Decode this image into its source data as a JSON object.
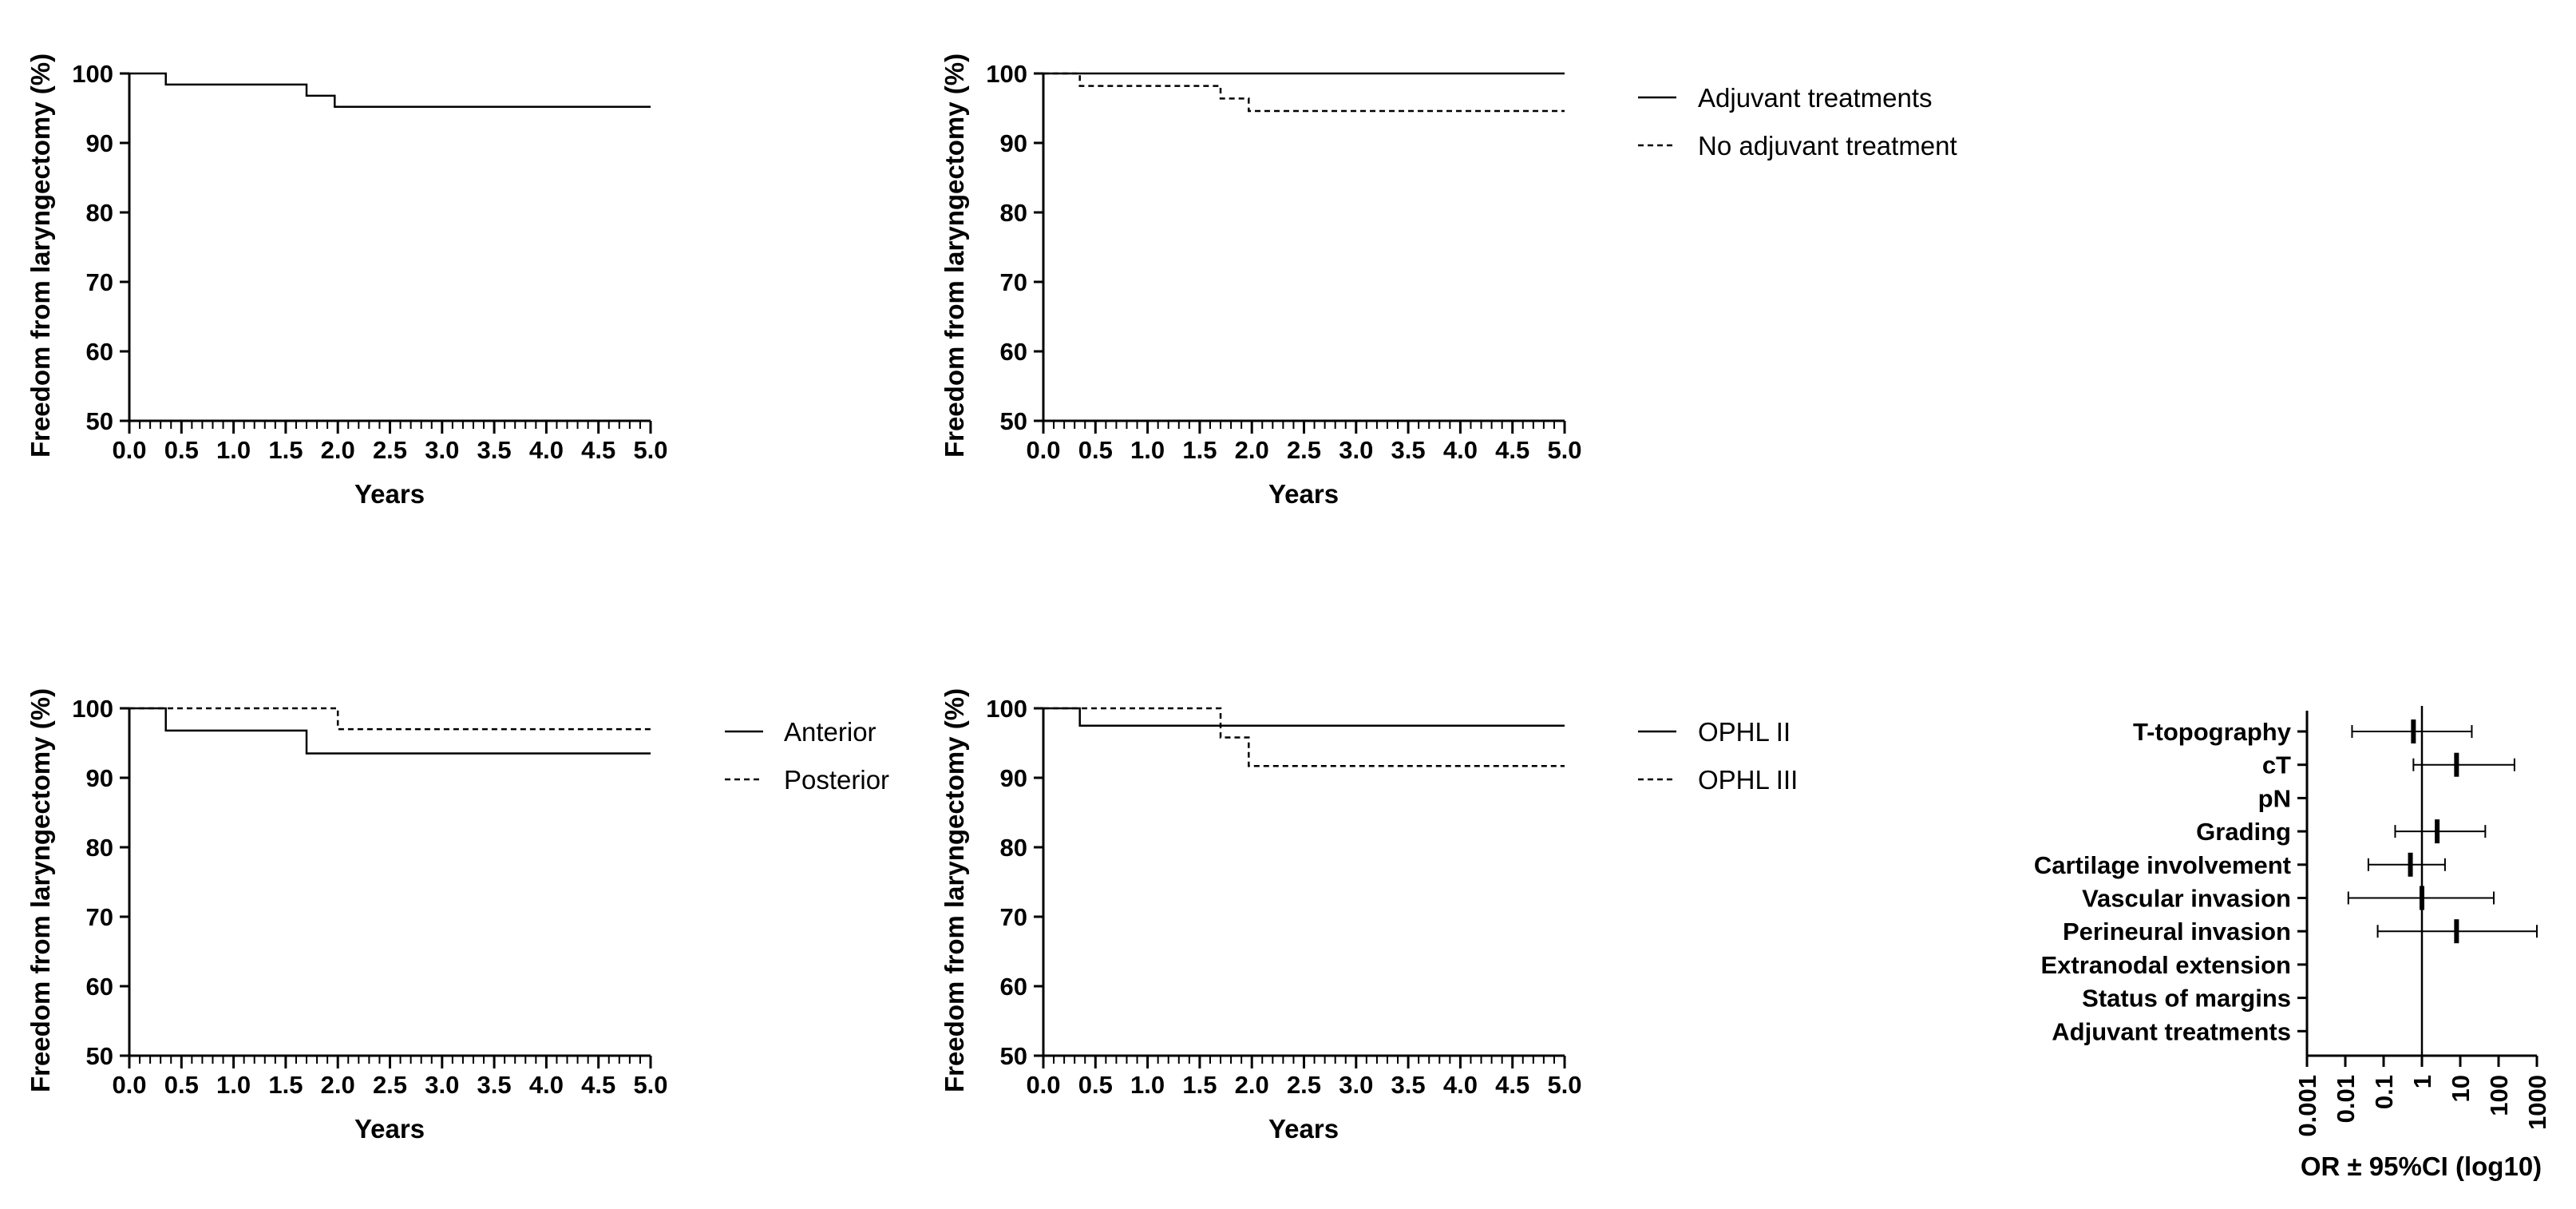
{
  "chart_data": [
    {
      "id": "km1",
      "type": "line",
      "step": true,
      "xlabel": "Years",
      "ylabel": "Freedom from laryngectomy (%)",
      "xlim": [
        0,
        5
      ],
      "ylim": [
        50,
        100
      ],
      "x_ticks": [
        0,
        0.5,
        1,
        1.5,
        2,
        2.5,
        3,
        3.5,
        4,
        4.5,
        5
      ],
      "x_tick_labels": [
        "0.0",
        "0.5",
        "1.0",
        "1.5",
        "2.0",
        "2.5",
        "3.0",
        "3.5",
        "4.0",
        "4.5",
        "5.0"
      ],
      "y_ticks": [
        50,
        60,
        70,
        80,
        90,
        100
      ],
      "y_tick_labels": [
        "50",
        "60",
        "70",
        "80",
        "90",
        "100"
      ],
      "grid": false,
      "series": [
        {
          "style": "solid",
          "x": [
            0,
            0.35,
            1.7,
            1.97,
            5
          ],
          "y": [
            100,
            98.4,
            96.8,
            95.2,
            95.2
          ]
        }
      ]
    },
    {
      "id": "km2",
      "type": "line",
      "step": true,
      "xlabel": "Years",
      "ylabel": "Freedom from laryngectomy (%)",
      "xlim": [
        0,
        5
      ],
      "ylim": [
        50,
        100
      ],
      "x_ticks": [
        0,
        0.5,
        1,
        1.5,
        2,
        2.5,
        3,
        3.5,
        4,
        4.5,
        5
      ],
      "x_tick_labels": [
        "0.0",
        "0.5",
        "1.0",
        "1.5",
        "2.0",
        "2.5",
        "3.0",
        "3.5",
        "4.0",
        "4.5",
        "5.0"
      ],
      "y_ticks": [
        50,
        60,
        70,
        80,
        90,
        100
      ],
      "y_tick_labels": [
        "50",
        "60",
        "70",
        "80",
        "90",
        "100"
      ],
      "grid": false,
      "legend_position": "right",
      "series": [
        {
          "name": "Adjuvant treatments",
          "style": "solid",
          "x": [
            0,
            5
          ],
          "y": [
            100,
            100
          ]
        },
        {
          "name": "No adjuvant treatment",
          "style": "dashed",
          "x": [
            0,
            0.35,
            1.7,
            1.97,
            5
          ],
          "y": [
            100,
            98.2,
            96.4,
            94.6,
            94.6
          ]
        }
      ]
    },
    {
      "id": "km3",
      "type": "line",
      "step": true,
      "xlabel": "Years",
      "ylabel": "Freedom from laryngectomy (%)",
      "xlim": [
        0,
        5
      ],
      "ylim": [
        50,
        100
      ],
      "x_ticks": [
        0,
        0.5,
        1,
        1.5,
        2,
        2.5,
        3,
        3.5,
        4,
        4.5,
        5
      ],
      "x_tick_labels": [
        "0.0",
        "0.5",
        "1.0",
        "1.5",
        "2.0",
        "2.5",
        "3.0",
        "3.5",
        "4.0",
        "4.5",
        "5.0"
      ],
      "y_ticks": [
        50,
        60,
        70,
        80,
        90,
        100
      ],
      "y_tick_labels": [
        "50",
        "60",
        "70",
        "80",
        "90",
        "100"
      ],
      "grid": false,
      "legend_position": "right",
      "series": [
        {
          "name": "Anterior",
          "style": "solid",
          "x": [
            0,
            0.35,
            1.7,
            5
          ],
          "y": [
            100,
            96.8,
            93.5,
            93.5
          ]
        },
        {
          "name": "Posterior",
          "style": "dashed",
          "x": [
            0,
            2.0,
            5
          ],
          "y": [
            100,
            97.0,
            97.0
          ]
        }
      ]
    },
    {
      "id": "km4",
      "type": "line",
      "step": true,
      "xlabel": "Years",
      "ylabel": "Freedom from laryngectomy (%)",
      "xlim": [
        0,
        5
      ],
      "ylim": [
        50,
        100
      ],
      "x_ticks": [
        0,
        0.5,
        1,
        1.5,
        2,
        2.5,
        3,
        3.5,
        4,
        4.5,
        5
      ],
      "x_tick_labels": [
        "0.0",
        "0.5",
        "1.0",
        "1.5",
        "2.0",
        "2.5",
        "3.0",
        "3.5",
        "4.0",
        "4.5",
        "5.0"
      ],
      "y_ticks": [
        50,
        60,
        70,
        80,
        90,
        100
      ],
      "y_tick_labels": [
        "50",
        "60",
        "70",
        "80",
        "90",
        "100"
      ],
      "grid": false,
      "legend_position": "right",
      "series": [
        {
          "name": "OPHL II",
          "style": "solid",
          "x": [
            0,
            0.35,
            5
          ],
          "y": [
            100,
            97.5,
            97.5
          ]
        },
        {
          "name": "OPHL III",
          "style": "dashed",
          "x": [
            0,
            1.7,
            1.97,
            5
          ],
          "y": [
            100,
            95.8,
            91.7,
            91.7
          ]
        }
      ]
    },
    {
      "id": "forest",
      "type": "scatter",
      "variant": "forest",
      "xlabel": "OR ± 95%CI (log10)",
      "x_scale": "log",
      "xlim": [
        0.001,
        1000
      ],
      "x_ticks": [
        0.001,
        0.01,
        0.1,
        1,
        10,
        100,
        1000
      ],
      "x_tick_labels": [
        "0.001",
        "0.01",
        "0.1",
        "1",
        "10",
        "100",
        "1000"
      ],
      "reference_line": 1,
      "rows": [
        {
          "label": "T-topography",
          "or": 0.6,
          "lo": 0.015,
          "hi": 20
        },
        {
          "label": "cT",
          "or": 8,
          "lo": 0.6,
          "hi": 260
        },
        {
          "label": "pN",
          "or": null,
          "lo": null,
          "hi": null
        },
        {
          "label": "Grading",
          "or": 2.5,
          "lo": 0.2,
          "hi": 45
        },
        {
          "label": "Cartilage involvement",
          "or": 0.5,
          "lo": 0.04,
          "hi": 4
        },
        {
          "label": "Vascular invasion",
          "or": 1,
          "lo": 0.012,
          "hi": 75
        },
        {
          "label": "Perineural invasion",
          "or": 8,
          "lo": 0.07,
          "hi": 1000
        },
        {
          "label": "Extranodal extension",
          "or": null,
          "lo": null,
          "hi": null
        },
        {
          "label": "Status of margins",
          "or": null,
          "lo": null,
          "hi": null
        },
        {
          "label": "Adjuvant treatments",
          "or": null,
          "lo": null,
          "hi": null
        }
      ]
    }
  ]
}
